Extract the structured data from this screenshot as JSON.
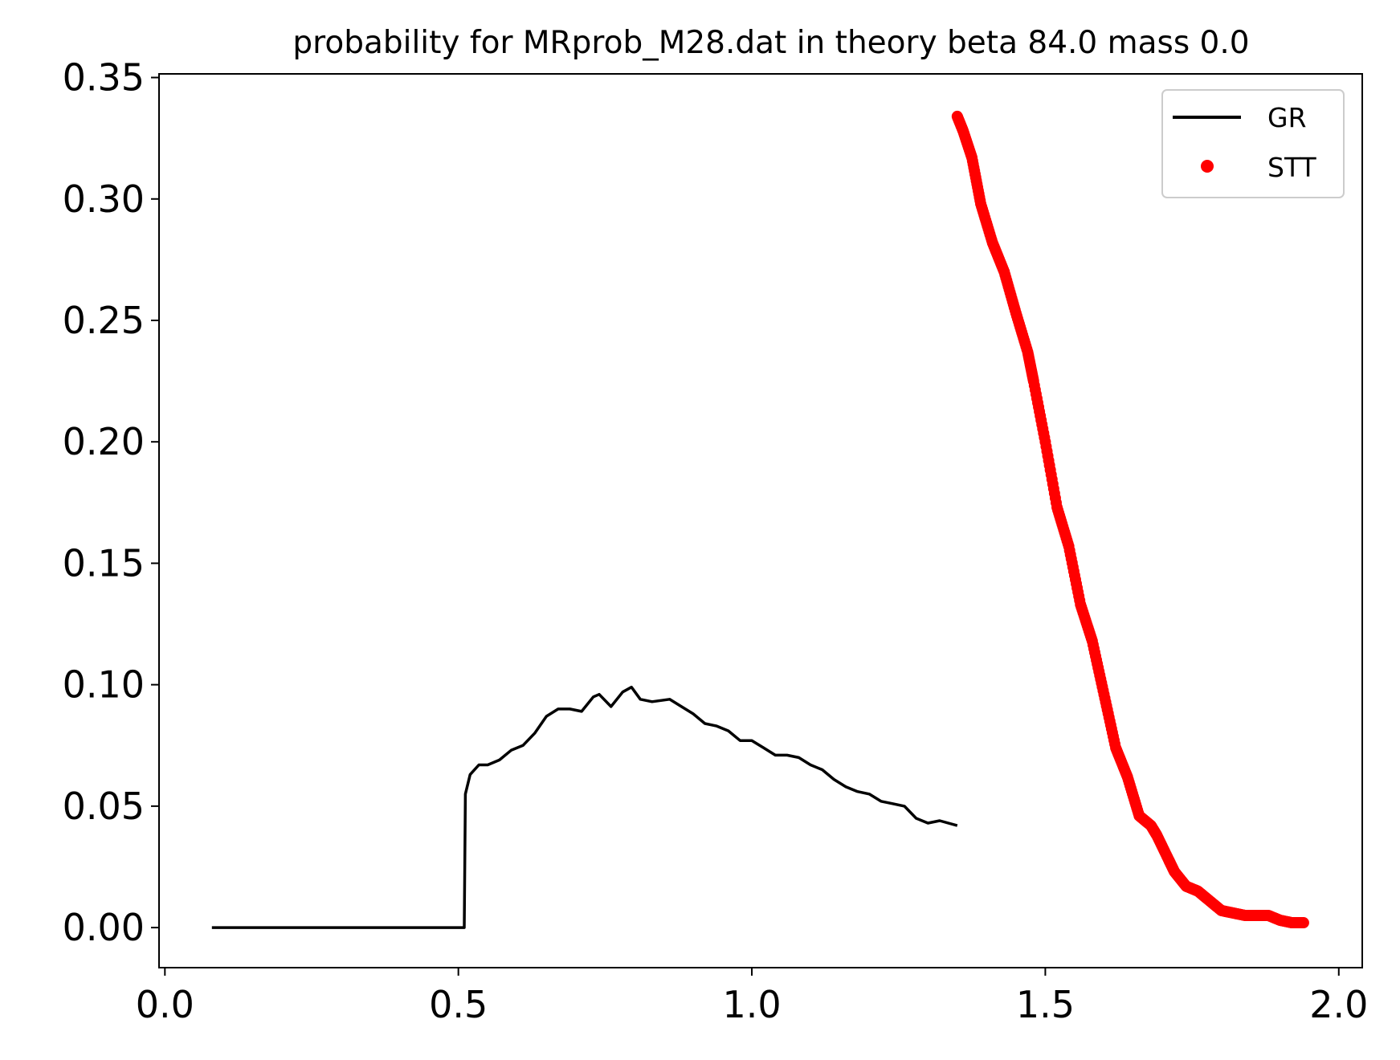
{
  "chart_data": {
    "type": "line",
    "title": "probability for MRprob_M28.dat in theory beta 84.0 mass 0.0",
    "xlabel": "",
    "ylabel": "",
    "xlim": [
      -0.01,
      2.04
    ],
    "ylim": [
      -0.0165,
      0.3515
    ],
    "x_ticks": [
      0.0,
      0.5,
      1.0,
      1.5,
      2.0
    ],
    "x_tick_labels": [
      "0.0",
      "0.5",
      "1.0",
      "1.5",
      "2.0"
    ],
    "y_ticks": [
      0.0,
      0.05,
      0.1,
      0.15,
      0.2,
      0.25,
      0.3,
      0.35
    ],
    "y_tick_labels": [
      "0.00",
      "0.05",
      "0.10",
      "0.15",
      "0.20",
      "0.25",
      "0.30",
      "0.35"
    ],
    "grid": false,
    "legend_position": "top-right",
    "series": [
      {
        "name": "GR",
        "style": "line",
        "color": "#000000",
        "x": [
          0.08,
          0.51,
          0.512,
          0.52,
          0.535,
          0.55,
          0.57,
          0.59,
          0.61,
          0.63,
          0.65,
          0.67,
          0.69,
          0.71,
          0.73,
          0.74,
          0.76,
          0.78,
          0.795,
          0.81,
          0.83,
          0.86,
          0.88,
          0.9,
          0.92,
          0.94,
          0.96,
          0.98,
          1.0,
          1.02,
          1.04,
          1.06,
          1.08,
          1.1,
          1.12,
          1.14,
          1.16,
          1.18,
          1.2,
          1.22,
          1.24,
          1.26,
          1.28,
          1.3,
          1.32,
          1.35
        ],
        "y": [
          0.0,
          0.0,
          0.055,
          0.063,
          0.067,
          0.067,
          0.069,
          0.073,
          0.075,
          0.08,
          0.087,
          0.09,
          0.09,
          0.089,
          0.095,
          0.096,
          0.091,
          0.097,
          0.099,
          0.094,
          0.093,
          0.094,
          0.091,
          0.088,
          0.084,
          0.083,
          0.081,
          0.077,
          0.077,
          0.074,
          0.071,
          0.071,
          0.07,
          0.067,
          0.065,
          0.061,
          0.058,
          0.056,
          0.055,
          0.052,
          0.051,
          0.05,
          0.045,
          0.043,
          0.044,
          0.042
        ]
      },
      {
        "name": "STT",
        "style": "points",
        "color": "#ff0000",
        "x": [
          1.35,
          1.36,
          1.375,
          1.39,
          1.41,
          1.43,
          1.45,
          1.47,
          1.48,
          1.5,
          1.52,
          1.54,
          1.56,
          1.58,
          1.6,
          1.62,
          1.64,
          1.66,
          1.68,
          1.69,
          1.71,
          1.72,
          1.74,
          1.76,
          1.78,
          1.8,
          1.82,
          1.84,
          1.86,
          1.88,
          1.9,
          1.92,
          1.94
        ],
        "y": [
          0.334,
          0.328,
          0.317,
          0.298,
          0.282,
          0.27,
          0.253,
          0.237,
          0.225,
          0.2,
          0.173,
          0.157,
          0.133,
          0.118,
          0.096,
          0.074,
          0.062,
          0.046,
          0.042,
          0.038,
          0.028,
          0.023,
          0.017,
          0.015,
          0.011,
          0.007,
          0.006,
          0.005,
          0.005,
          0.005,
          0.003,
          0.002,
          0.002
        ]
      }
    ]
  }
}
